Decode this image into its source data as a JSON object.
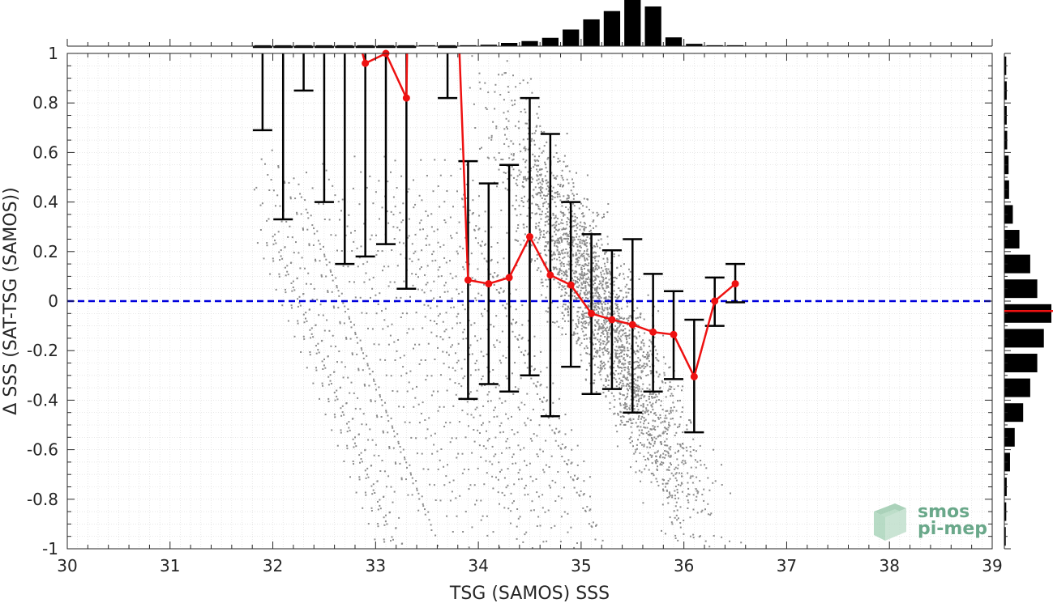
{
  "chart_data": {
    "type": "scatter",
    "title": "",
    "xlabel": "TSG (SAMOS) SSS",
    "ylabel": "Δ SSS (SAT-TSG (SAMOS))",
    "xlim": [
      30,
      39
    ],
    "ylim": [
      -1,
      1
    ],
    "x_ticks": [
      "30",
      "31",
      "32",
      "33",
      "34",
      "35",
      "36",
      "37",
      "38",
      "39"
    ],
    "y_ticks": [
      "-1",
      "-0.8",
      "-0.6",
      "-0.4",
      "-0.2",
      "0",
      "0.2",
      "0.4",
      "0.6",
      "0.8",
      "1"
    ],
    "grid": "minor dotted",
    "zero_line": {
      "y": 0,
      "style": "dashed",
      "color": "#0000dd"
    },
    "colors": {
      "scatter": "#8c8c8c",
      "mean": "#ee1111",
      "errorbar": "#000000",
      "histogram": "#000000",
      "hist_mean": "#ee1111"
    },
    "scatter_cloud": {
      "center_x": 35.2,
      "center_y": -0.05,
      "slope": -0.75,
      "x_range": [
        31.8,
        36.2
      ]
    },
    "mean_series": {
      "name": "",
      "x": [
        32.9,
        33.1,
        33.3,
        33.9,
        34.1,
        34.3,
        34.5,
        34.7,
        34.9,
        35.1,
        35.3,
        35.5,
        35.7,
        35.9,
        36.1,
        36.3,
        36.5
      ],
      "y": [
        0.96,
        1.0,
        0.82,
        0.085,
        0.07,
        0.095,
        0.26,
        0.105,
        0.065,
        -0.05,
        -0.075,
        -0.095,
        -0.125,
        -0.135,
        -0.305,
        0.0,
        0.07
      ]
    },
    "error_bars": {
      "x": [
        31.9,
        32.1,
        32.3,
        32.5,
        32.7,
        32.9,
        33.1,
        33.3,
        33.7,
        33.9,
        34.1,
        34.3,
        34.5,
        34.7,
        34.9,
        35.1,
        35.3,
        35.5,
        35.7,
        35.9,
        36.1,
        36.3,
        36.5
      ],
      "lower": [
        0.69,
        0.33,
        0.85,
        0.4,
        0.15,
        0.18,
        0.23,
        0.05,
        0.82,
        -0.395,
        -0.335,
        -0.365,
        -0.3,
        -0.465,
        -0.265,
        -0.375,
        -0.355,
        -0.45,
        -0.365,
        -0.315,
        -0.53,
        -0.1,
        -0.005
      ],
      "upper": [
        1.0,
        1.0,
        1.0,
        1.0,
        1.0,
        1.0,
        1.0,
        1.0,
        1.0,
        0.565,
        0.475,
        0.55,
        0.82,
        0.675,
        0.4,
        0.27,
        0.205,
        0.25,
        0.11,
        0.04,
        -0.075,
        0.095,
        0.15
      ]
    },
    "top_histogram": {
      "bin_centers": [
        31.9,
        32.1,
        32.3,
        32.5,
        32.7,
        32.9,
        33.1,
        33.3,
        33.5,
        33.7,
        33.9,
        34.1,
        34.3,
        34.5,
        34.7,
        34.9,
        35.1,
        35.3,
        35.5,
        35.7,
        35.9,
        36.1,
        36.3,
        36.5
      ],
      "relative_counts": [
        0.02,
        0.02,
        0.02,
        0.02,
        0.02,
        0.02,
        0.02,
        0.02,
        0.02,
        0.02,
        0.02,
        0.03,
        0.07,
        0.11,
        0.18,
        0.36,
        0.58,
        0.76,
        1.0,
        0.86,
        0.19,
        0.05,
        0.02,
        0.02
      ]
    },
    "right_histogram": {
      "bin_centers": [
        0.95,
        0.85,
        0.75,
        0.65,
        0.55,
        0.45,
        0.35,
        0.25,
        0.15,
        0.05,
        -0.05,
        -0.15,
        -0.25,
        -0.35,
        -0.45,
        -0.55,
        -0.65,
        -0.75,
        -0.85,
        -0.95
      ],
      "relative_counts": [
        0.04,
        0.05,
        0.05,
        0.06,
        0.09,
        0.1,
        0.18,
        0.32,
        0.55,
        0.7,
        1.0,
        0.84,
        0.7,
        0.55,
        0.4,
        0.22,
        0.12,
        0.05,
        0.04,
        0.03
      ],
      "mean": -0.04
    }
  },
  "logo": {
    "line1": "smos",
    "line2": "pi-mep"
  }
}
